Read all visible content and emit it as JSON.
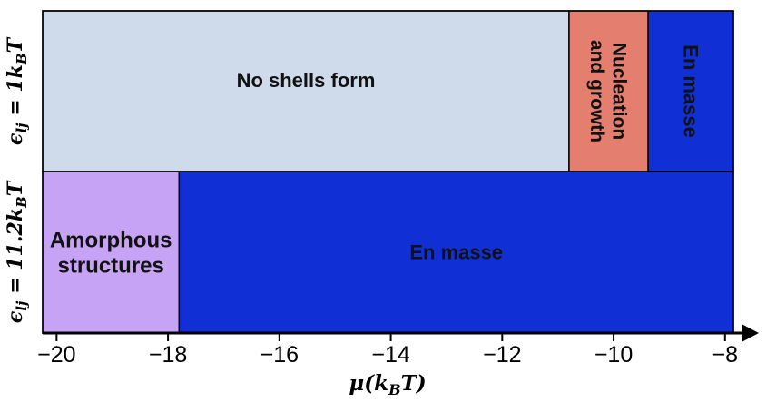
{
  "chart_data": {
    "type": "heatmap",
    "title": "",
    "xlabel": "μ(k_BT)",
    "xlim": [
      -20.25,
      -7.85
    ],
    "xticks": [
      -20,
      -18,
      -16,
      -14,
      -12,
      -10,
      -8
    ],
    "xtick_labels": [
      "−20",
      "−18",
      "−16",
      "−14",
      "−12",
      "−10",
      "−8"
    ],
    "rows": [
      {
        "label": "ϵ_lj = 1k_BT",
        "regions": [
          {
            "label": "No shells form",
            "x_start": -20.25,
            "x_end": -10.8,
            "color": "#cfdbea"
          },
          {
            "label": "Nucleation and growth",
            "x_start": -10.8,
            "x_end": -9.38,
            "color": "#e47e6e"
          },
          {
            "label": "En masse",
            "x_start": -9.38,
            "x_end": -7.85,
            "color": "#1030d6"
          }
        ]
      },
      {
        "label": "ϵ_lj = 11.2k_BT",
        "regions": [
          {
            "label": "Amorphous structures",
            "x_start": -20.25,
            "x_end": -17.8,
            "color": "#c7a3f6"
          },
          {
            "label": "En masse",
            "x_start": -17.8,
            "x_end": -7.85,
            "color": "#1030d6"
          }
        ]
      }
    ]
  }
}
